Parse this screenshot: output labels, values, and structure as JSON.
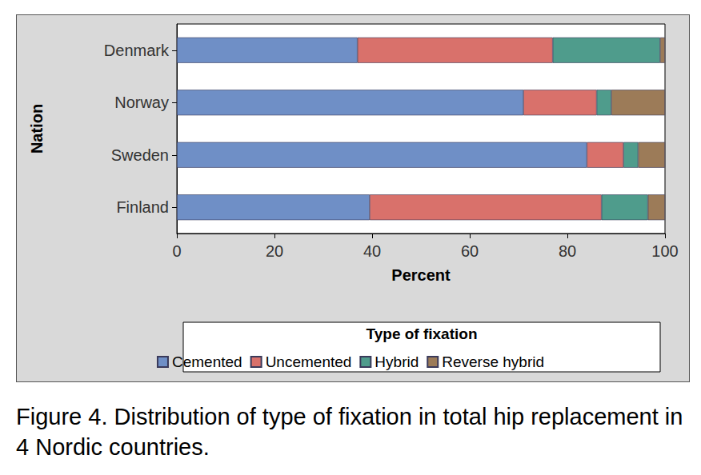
{
  "chart_data": {
    "type": "bar",
    "orientation": "horizontal",
    "stacked": true,
    "grid": false,
    "legend": "bottom",
    "legend_title": "Type of fixation",
    "caption": "Figure 4. Distribution of type of fixation in total hip replacement in 4 Nordic countries.",
    "xlabel": "Percent",
    "ylabel": "Nation",
    "categories": [
      "Denmark",
      "Norway",
      "Sweden",
      "Finland"
    ],
    "xlim": [
      0,
      100
    ],
    "xticks": [
      0,
      20,
      40,
      60,
      80,
      100
    ],
    "series": [
      {
        "name": "Cemented",
        "color": "#6f8fc6",
        "values": [
          37,
          71,
          84,
          39.5
        ]
      },
      {
        "name": "Uncemented",
        "color": "#d9716b",
        "values": [
          40,
          15,
          7.5,
          47.5
        ]
      },
      {
        "name": "Hybrid",
        "color": "#4f9c8c",
        "values": [
          22,
          3,
          3,
          9.5
        ]
      },
      {
        "name": "Reverse hybrid",
        "color": "#9c7b58",
        "values": [
          1,
          11,
          5.5,
          3.5
        ]
      }
    ]
  }
}
